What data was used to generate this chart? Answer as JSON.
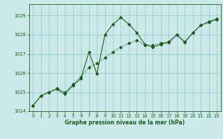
{
  "xlabel": "Graphe pression niveau de la mer (hPa)",
  "bg_color": "#cce9e9",
  "grid_color": "#99cccc",
  "line_color": "#1a5c1a",
  "ylim": [
    1024,
    1029.6
  ],
  "xlim": [
    -0.5,
    23.5
  ],
  "yticks": [
    1024,
    1025,
    1026,
    1027,
    1028,
    1029
  ],
  "xticks": [
    0,
    1,
    2,
    3,
    4,
    5,
    6,
    7,
    8,
    9,
    10,
    11,
    12,
    13,
    14,
    15,
    16,
    17,
    18,
    19,
    20,
    21,
    22,
    23
  ],
  "series1_x": [
    0,
    1,
    2,
    3,
    4,
    5,
    6,
    7,
    8,
    9,
    10,
    11,
    12,
    13,
    14,
    15,
    16,
    17,
    18,
    19,
    20,
    21,
    22,
    23
  ],
  "series1_y": [
    1024.3,
    1024.8,
    1025.0,
    1025.15,
    1024.9,
    1025.35,
    1025.7,
    1027.1,
    1025.95,
    1028.0,
    1028.55,
    1028.9,
    1028.55,
    1028.1,
    1027.5,
    1027.35,
    1027.5,
    1027.6,
    1028.0,
    1027.6,
    1028.1,
    1028.5,
    1028.65,
    1028.8
  ],
  "series2_x": [
    0,
    1,
    2,
    3,
    4,
    5,
    6,
    7,
    8,
    9,
    10,
    11,
    12,
    13,
    14,
    15,
    16,
    17,
    18,
    19,
    20,
    21,
    22,
    23
  ],
  "series2_y": [
    1024.3,
    1024.8,
    1025.0,
    1025.2,
    1025.0,
    1025.4,
    1025.8,
    1026.3,
    1026.5,
    1026.8,
    1027.1,
    1027.35,
    1027.55,
    1027.7,
    1027.45,
    1027.45,
    1027.55,
    1027.65,
    1028.0,
    1027.65,
    1028.1,
    1028.5,
    1028.7,
    1028.85
  ],
  "xlabel_fontsize": 5.5,
  "tick_fontsize": 4.8,
  "label_color": "#1a5c1a"
}
